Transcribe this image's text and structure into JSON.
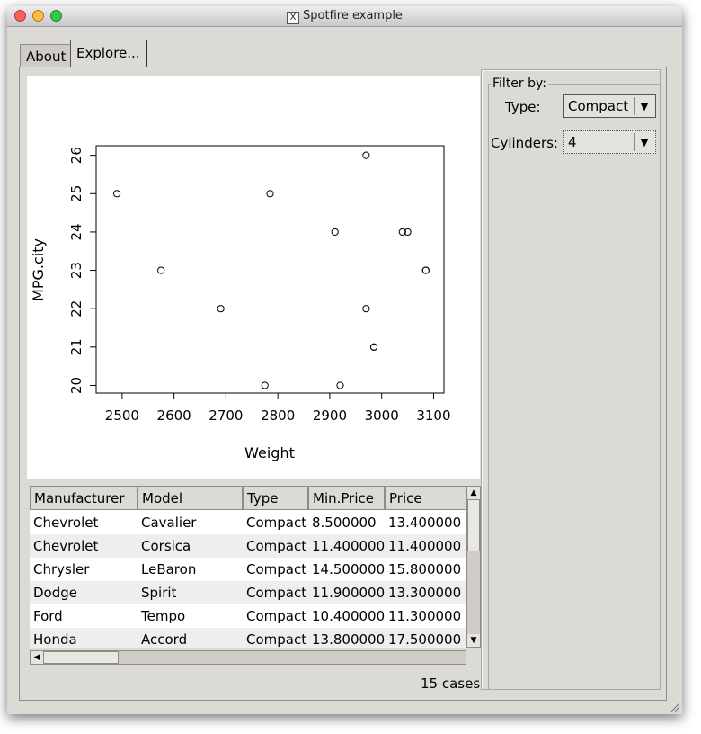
{
  "window": {
    "title": "Spotfire example"
  },
  "tabs": [
    {
      "label": "About"
    },
    {
      "label": "Explore..."
    }
  ],
  "filter": {
    "group_label": "Filter by:",
    "type": {
      "label": "Type:",
      "value": "Compact"
    },
    "cylinders": {
      "label": "Cylinders:",
      "value": "4"
    }
  },
  "chart_data": {
    "type": "scatter",
    "xlabel": "Weight",
    "ylabel": "MPG.city",
    "xlim": [
      2450,
      3120
    ],
    "ylim": [
      19.8,
      26.25
    ],
    "xticks": [
      2500,
      2600,
      2700,
      2800,
      2900,
      3000,
      3100
    ],
    "yticks": [
      20,
      21,
      22,
      23,
      24,
      25,
      26
    ],
    "grid": false,
    "points": [
      [
        2490,
        25
      ],
      [
        2575,
        23
      ],
      [
        2690,
        22
      ],
      [
        2775,
        20
      ],
      [
        2785,
        25
      ],
      [
        2910,
        24
      ],
      [
        2920,
        20
      ],
      [
        2970,
        26
      ],
      [
        2970,
        22
      ],
      [
        2985,
        21
      ],
      [
        2985,
        21
      ],
      [
        3040,
        24
      ],
      [
        3050,
        24
      ],
      [
        3085,
        23
      ],
      [
        3085,
        23
      ]
    ]
  },
  "table": {
    "columns": [
      "Manufacturer",
      "Model",
      "Type",
      "Min.Price",
      "Price"
    ],
    "rows": [
      [
        "Chevrolet",
        "Cavalier",
        "Compact",
        "8.500000",
        "13.400000"
      ],
      [
        "Chevrolet",
        "Corsica",
        "Compact",
        "11.400000",
        "11.400000"
      ],
      [
        "Chrysler",
        "LeBaron",
        "Compact",
        "14.500000",
        "15.800000"
      ],
      [
        "Dodge",
        "Spirit",
        "Compact",
        "11.900000",
        "13.300000"
      ],
      [
        "Ford",
        "Tempo",
        "Compact",
        "10.400000",
        "11.300000"
      ],
      [
        "Honda",
        "Accord",
        "Compact",
        "13.800000",
        "17.500000"
      ]
    ]
  },
  "status": {
    "cases": "15 cases"
  },
  "colors": {
    "close": "#fc605c",
    "minimize": "#fdbc40",
    "zoom": "#34c84a"
  }
}
